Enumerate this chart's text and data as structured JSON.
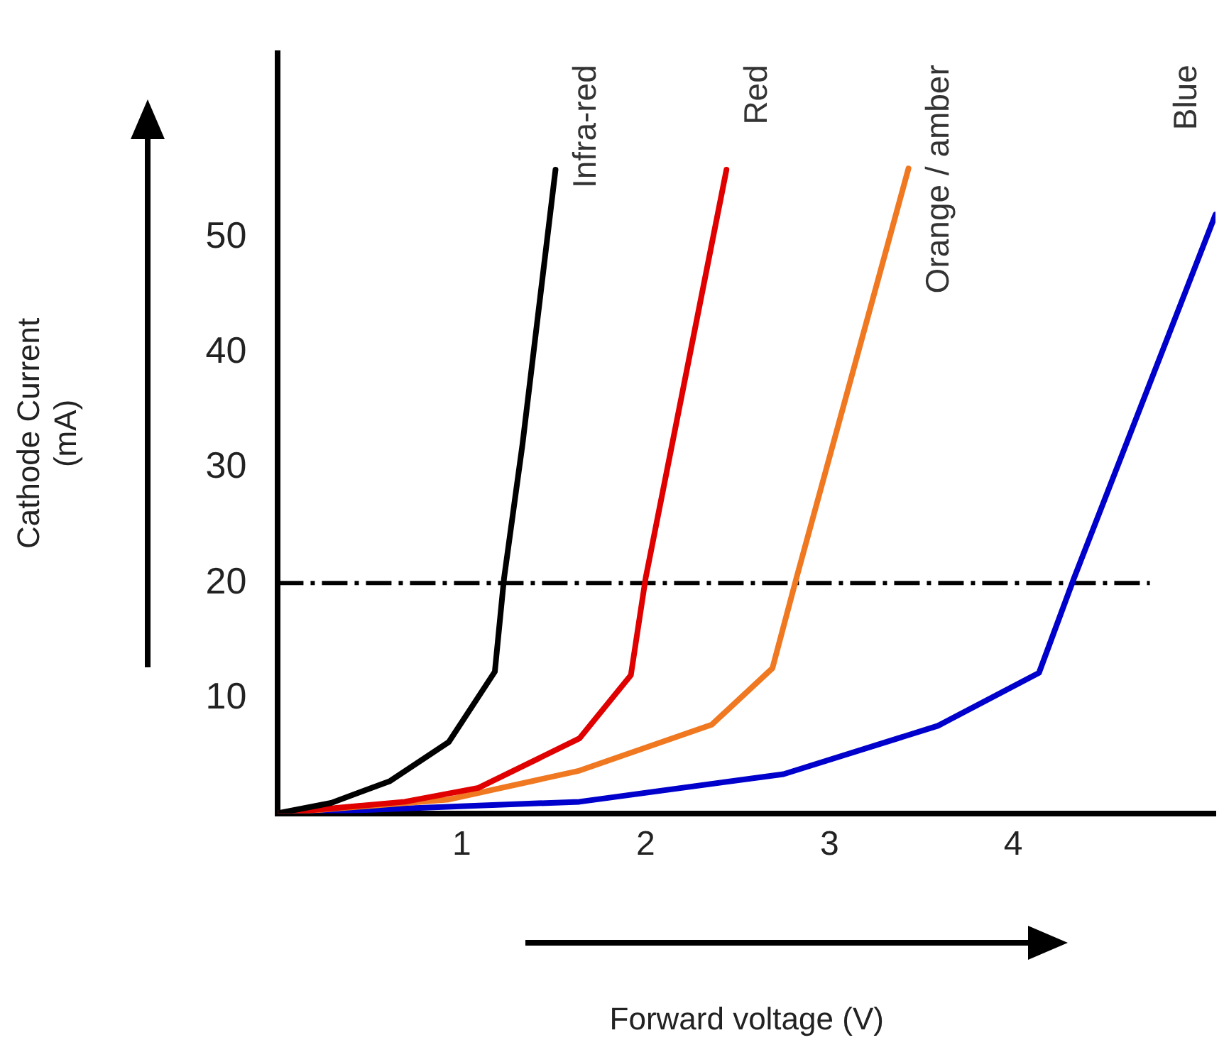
{
  "chart_data": {
    "type": "line",
    "xlabel": "Forward voltage (V)",
    "ylabel": "Cathode Current\n(mA)",
    "xlim": [
      0,
      5.1
    ],
    "ylim": [
      0,
      66
    ],
    "xticks": [
      1,
      2,
      3,
      4
    ],
    "yticks": [
      10,
      20,
      30,
      40,
      50
    ],
    "grid": false,
    "legend": false,
    "marker": "none",
    "line_style": "solid",
    "series": [
      {
        "name": "Infra-red",
        "color": "#000000",
        "x": [
          0,
          0.29,
          0.61,
          0.93,
          1.18,
          1.23,
          1.33,
          1.51
        ],
        "values": [
          0,
          0.9,
          2.8,
          6.2,
          12.3,
          20.4,
          32,
          55.9
        ]
      },
      {
        "name": "Red",
        "color": "#e00000",
        "x": [
          0,
          0.69,
          1.09,
          1.64,
          1.92,
          2.0,
          2.44
        ],
        "values": [
          0,
          1,
          2.2,
          6.5,
          12,
          20.4,
          55.9
        ]
      },
      {
        "name": "Orange / amber",
        "color": "#f07820",
        "x": [
          0,
          0.93,
          1.64,
          2.36,
          2.69,
          2.82,
          3.43
        ],
        "values": [
          0,
          1.2,
          3.7,
          7.7,
          12.6,
          20.4,
          56
        ]
      },
      {
        "name": "Blue",
        "color": "#0000cc",
        "x": [
          0,
          1.64,
          2.75,
          3.59,
          4.14,
          4.33,
          5.1
        ],
        "values": [
          0,
          1,
          3.4,
          7.6,
          12.2,
          20.4,
          52
        ]
      }
    ],
    "ref_lines": [
      {
        "axis": "y",
        "value": 20,
        "color": "#000000",
        "line_style": "dashed"
      }
    ]
  }
}
